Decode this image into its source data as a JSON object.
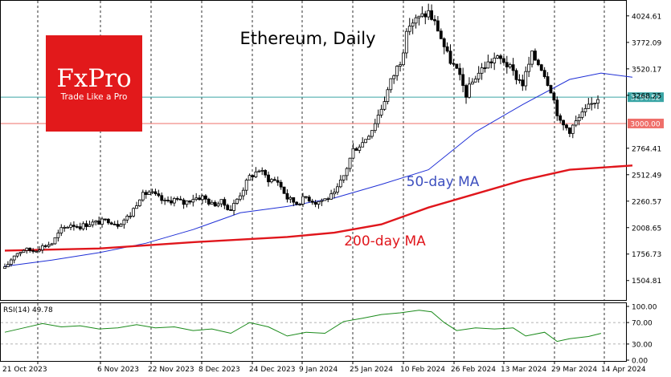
{
  "chart_data": [
    {
      "type": "candlestick",
      "title": "Ethereum, Daily",
      "x_tick_labels": [
        "21 Oct 2023",
        "6 Nov 2023",
        "22 Nov 2023",
        "8 Dec 2023",
        "24 Dec 2023",
        "9 Jan 2024",
        "25 Jan 2024",
        "10 Feb 2024",
        "26 Feb 2024",
        "13 Mar 2024",
        "29 Mar 2024",
        "14 Apr 2024"
      ],
      "y_tick_labels": [
        "4024.61",
        "3772.09",
        "3520.17",
        "3268.25",
        "2764.41",
        "2512.49",
        "2260.57",
        "2008.65",
        "1756.73",
        "1504.81"
      ],
      "ylim": [
        1350,
        4130
      ],
      "series": [
        {
          "name": "50-day MA",
          "color": "#1f2fd6",
          "points": [
            [
              0,
              1640
            ],
            [
              15,
              1700
            ],
            [
              30,
              1770
            ],
            [
              45,
              1860
            ],
            [
              60,
              1990
            ],
            [
              75,
              2150
            ],
            [
              90,
              2210
            ],
            [
              105,
              2290
            ],
            [
              120,
              2420
            ],
            [
              135,
              2560
            ],
            [
              150,
              2920
            ],
            [
              165,
              3180
            ],
            [
              180,
              3420
            ],
            [
              190,
              3480
            ],
            [
              200,
              3440
            ]
          ]
        },
        {
          "name": "200-day MA",
          "color": "#e0161c",
          "points": [
            [
              0,
              1790
            ],
            [
              30,
              1810
            ],
            [
              60,
              1870
            ],
            [
              90,
              1920
            ],
            [
              105,
              1960
            ],
            [
              120,
              2040
            ],
            [
              135,
              2200
            ],
            [
              150,
              2330
            ],
            [
              165,
              2460
            ],
            [
              180,
              2560
            ],
            [
              200,
              2600
            ]
          ]
        }
      ],
      "price_path": [
        [
          0,
          1620
        ],
        [
          3,
          1750
        ],
        [
          6,
          1800
        ],
        [
          9,
          1790
        ],
        [
          12,
          1830
        ],
        [
          15,
          1860
        ],
        [
          18,
          1990
        ],
        [
          21,
          2040
        ],
        [
          24,
          2020
        ],
        [
          27,
          2050
        ],
        [
          30,
          2060
        ],
        [
          33,
          2080
        ],
        [
          36,
          2040
        ],
        [
          40,
          2130
        ],
        [
          43,
          2300
        ],
        [
          46,
          2350
        ],
        [
          48,
          2310
        ],
        [
          51,
          2250
        ],
        [
          54,
          2280
        ],
        [
          57,
          2240
        ],
        [
          60,
          2290
        ],
        [
          63,
          2300
        ],
        [
          66,
          2230
        ],
        [
          69,
          2250
        ],
        [
          72,
          2180
        ],
        [
          75,
          2330
        ],
        [
          78,
          2490
        ],
        [
          81,
          2560
        ],
        [
          84,
          2470
        ],
        [
          87,
          2450
        ],
        [
          90,
          2290
        ],
        [
          93,
          2240
        ],
        [
          96,
          2300
        ],
        [
          99,
          2250
        ],
        [
          102,
          2280
        ],
        [
          105,
          2320
        ],
        [
          108,
          2500
        ],
        [
          111,
          2750
        ],
        [
          114,
          2820
        ],
        [
          117,
          2950
        ],
        [
          120,
          3150
        ],
        [
          123,
          3400
        ],
        [
          126,
          3600
        ],
        [
          129,
          3950
        ],
        [
          132,
          4000
        ],
        [
          135,
          4060
        ],
        [
          138,
          3900
        ],
        [
          141,
          3650
        ],
        [
          144,
          3500
        ],
        [
          147,
          3280
        ],
        [
          150,
          3450
        ],
        [
          153,
          3550
        ],
        [
          156,
          3620
        ],
        [
          159,
          3600
        ],
        [
          162,
          3480
        ],
        [
          165,
          3380
        ],
        [
          168,
          3650
        ],
        [
          171,
          3540
        ],
        [
          174,
          3330
        ],
        [
          177,
          3000
        ],
        [
          180,
          2940
        ],
        [
          183,
          3050
        ],
        [
          186,
          3150
        ],
        [
          189,
          3250
        ]
      ],
      "horizontal_levels": [
        {
          "value": 3250.52,
          "label": "3250.52",
          "color": "#3aa5a5"
        },
        {
          "value": 3000.0,
          "label": "3000.00",
          "color": "#ef6f6a"
        }
      ],
      "annotations": [
        {
          "text": "50-day MA",
          "color": "#3d4fbf"
        },
        {
          "text": "200-day MA",
          "color": "#e0161c"
        }
      ]
    },
    {
      "type": "line",
      "title": "RSI(14) 49.78",
      "y_tick_labels": [
        "100.00",
        "70.00",
        "30.00",
        "0.00"
      ],
      "ylim": [
        0,
        100
      ],
      "levels": [
        70,
        30
      ],
      "series": [
        {
          "name": "RSI(14)",
          "color": "#1a8a1a",
          "points": [
            [
              0,
              52
            ],
            [
              6,
              60
            ],
            [
              12,
              68
            ],
            [
              18,
              62
            ],
            [
              24,
              64
            ],
            [
              30,
              58
            ],
            [
              36,
              60
            ],
            [
              42,
              66
            ],
            [
              48,
              60
            ],
            [
              54,
              62
            ],
            [
              60,
              55
            ],
            [
              66,
              58
            ],
            [
              72,
              50
            ],
            [
              78,
              70
            ],
            [
              84,
              62
            ],
            [
              90,
              45
            ],
            [
              96,
              52
            ],
            [
              102,
              50
            ],
            [
              108,
              72
            ],
            [
              114,
              78
            ],
            [
              120,
              85
            ],
            [
              126,
              88
            ],
            [
              132,
              93
            ],
            [
              136,
              90
            ],
            [
              140,
              70
            ],
            [
              144,
              55
            ],
            [
              150,
              60
            ],
            [
              156,
              58
            ],
            [
              162,
              60
            ],
            [
              166,
              45
            ],
            [
              172,
              52
            ],
            [
              176,
              35
            ],
            [
              180,
              40
            ],
            [
              186,
              44
            ],
            [
              190,
              49.78
            ]
          ]
        }
      ]
    }
  ],
  "logo": {
    "brand": "FxPro",
    "tagline": "Trade Like a Pro",
    "color": "#e2191b"
  }
}
